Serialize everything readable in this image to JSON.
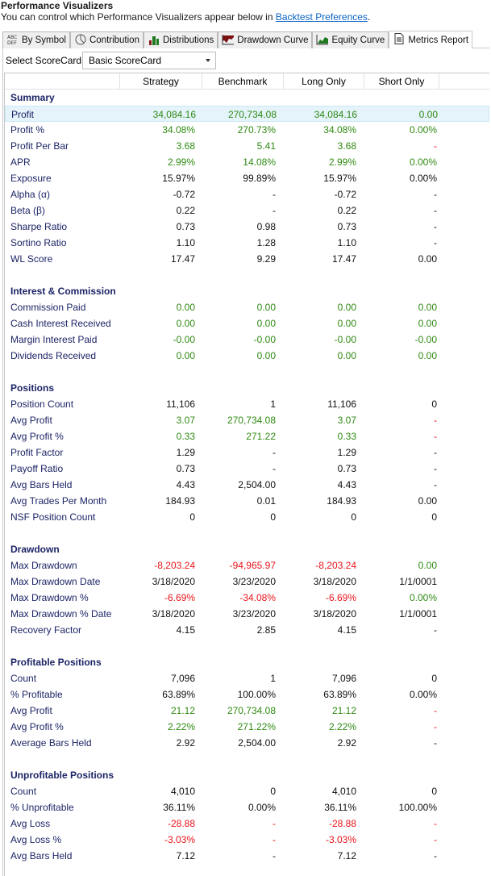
{
  "header": {
    "title": "Performance Visualizers",
    "subtitle": "You can control which Performance Visualizers appear below in ",
    "link": "Backtest Preferences",
    "period": "."
  },
  "tabs": [
    {
      "label": "By Symbol",
      "icon": "abc-def-icon"
    },
    {
      "label": "Contribution",
      "icon": "pie-chart-icon"
    },
    {
      "label": "Distributions",
      "icon": "bar-chart-icon"
    },
    {
      "label": "Drawdown Curve",
      "icon": "drawdown-chart-icon"
    },
    {
      "label": "Equity Curve",
      "icon": "equity-chart-icon"
    },
    {
      "label": "Metrics Report",
      "icon": "document-icon",
      "active": true
    }
  ],
  "scorecard": {
    "label": "Select ScoreCard:",
    "value": "Basic ScoreCard"
  },
  "columns": [
    "Strategy",
    "Benchmark",
    "Long Only",
    "Short Only"
  ],
  "colors": {
    "g": "#2f8a12",
    "r": "#e8141b",
    "k": "#111111"
  },
  "sections": [
    {
      "title": "Summary",
      "rows": [
        [
          "Profit",
          [
            [
              "34,084.16",
              "g"
            ],
            [
              "270,734.08",
              "g"
            ],
            [
              "34,084.16",
              "g"
            ],
            [
              "0.00",
              "g"
            ]
          ],
          true
        ],
        [
          "Profit %",
          [
            [
              "34.08%",
              "g"
            ],
            [
              "270.73%",
              "g"
            ],
            [
              "34.08%",
              "g"
            ],
            [
              "0.00%",
              "g"
            ]
          ]
        ],
        [
          "Profit Per Bar",
          [
            [
              "3.68",
              "g"
            ],
            [
              "5.41",
              "g"
            ],
            [
              "3.68",
              "g"
            ],
            [
              "-",
              "r"
            ]
          ]
        ],
        [
          "APR",
          [
            [
              "2.99%",
              "g"
            ],
            [
              "14.08%",
              "g"
            ],
            [
              "2.99%",
              "g"
            ],
            [
              "0.00%",
              "g"
            ]
          ]
        ],
        [
          "Exposure",
          [
            [
              "15.97%",
              "k"
            ],
            [
              "99.89%",
              "k"
            ],
            [
              "15.97%",
              "k"
            ],
            [
              "0.00%",
              "k"
            ]
          ]
        ],
        [
          "Alpha (α)",
          [
            [
              "-0.72",
              "k"
            ],
            [
              "-",
              "k"
            ],
            [
              "-0.72",
              "k"
            ],
            [
              "-",
              "k"
            ]
          ]
        ],
        [
          "Beta (β)",
          [
            [
              "0.22",
              "k"
            ],
            [
              "-",
              "k"
            ],
            [
              "0.22",
              "k"
            ],
            [
              "-",
              "k"
            ]
          ]
        ],
        [
          "Sharpe Ratio",
          [
            [
              "0.73",
              "k"
            ],
            [
              "0.98",
              "k"
            ],
            [
              "0.73",
              "k"
            ],
            [
              "-",
              "k"
            ]
          ]
        ],
        [
          "Sortino Ratio",
          [
            [
              "1.10",
              "k"
            ],
            [
              "1.28",
              "k"
            ],
            [
              "1.10",
              "k"
            ],
            [
              "-",
              "k"
            ]
          ]
        ],
        [
          "WL Score",
          [
            [
              "17.47",
              "k"
            ],
            [
              "9.29",
              "k"
            ],
            [
              "17.47",
              "k"
            ],
            [
              "0.00",
              "k"
            ]
          ]
        ]
      ]
    },
    {
      "title": "Interest & Commission",
      "rows": [
        [
          "Commission Paid",
          [
            [
              "0.00",
              "g"
            ],
            [
              "0.00",
              "g"
            ],
            [
              "0.00",
              "g"
            ],
            [
              "0.00",
              "g"
            ]
          ]
        ],
        [
          "Cash Interest Received",
          [
            [
              "0.00",
              "g"
            ],
            [
              "0.00",
              "g"
            ],
            [
              "0.00",
              "g"
            ],
            [
              "0.00",
              "g"
            ]
          ]
        ],
        [
          "Margin Interest Paid",
          [
            [
              "-0.00",
              "g"
            ],
            [
              "-0.00",
              "g"
            ],
            [
              "-0.00",
              "g"
            ],
            [
              "-0.00",
              "g"
            ]
          ]
        ],
        [
          "Dividends Received",
          [
            [
              "0.00",
              "g"
            ],
            [
              "0.00",
              "g"
            ],
            [
              "0.00",
              "g"
            ],
            [
              "0.00",
              "g"
            ]
          ]
        ]
      ]
    },
    {
      "title": "Positions",
      "rows": [
        [
          "Position Count",
          [
            [
              "11,106",
              "k"
            ],
            [
              "1",
              "k"
            ],
            [
              "11,106",
              "k"
            ],
            [
              "0",
              "k"
            ]
          ]
        ],
        [
          "Avg Profit",
          [
            [
              "3.07",
              "g"
            ],
            [
              "270,734.08",
              "g"
            ],
            [
              "3.07",
              "g"
            ],
            [
              "-",
              "r"
            ]
          ]
        ],
        [
          "Avg Profit %",
          [
            [
              "0.33",
              "g"
            ],
            [
              "271.22",
              "g"
            ],
            [
              "0.33",
              "g"
            ],
            [
              "-",
              "r"
            ]
          ]
        ],
        [
          "Profit Factor",
          [
            [
              "1.29",
              "k"
            ],
            [
              "-",
              "k"
            ],
            [
              "1.29",
              "k"
            ],
            [
              "-",
              "k"
            ]
          ]
        ],
        [
          "Payoff Ratio",
          [
            [
              "0.73",
              "k"
            ],
            [
              "-",
              "k"
            ],
            [
              "0.73",
              "k"
            ],
            [
              "-",
              "k"
            ]
          ]
        ],
        [
          "Avg Bars Held",
          [
            [
              "4.43",
              "k"
            ],
            [
              "2,504.00",
              "k"
            ],
            [
              "4.43",
              "k"
            ],
            [
              "-",
              "k"
            ]
          ]
        ],
        [
          "Avg Trades Per Month",
          [
            [
              "184.93",
              "k"
            ],
            [
              "0.01",
              "k"
            ],
            [
              "184.93",
              "k"
            ],
            [
              "0.00",
              "k"
            ]
          ]
        ],
        [
          "NSF Position Count",
          [
            [
              "0",
              "k"
            ],
            [
              "0",
              "k"
            ],
            [
              "0",
              "k"
            ],
            [
              "0",
              "k"
            ]
          ]
        ]
      ]
    },
    {
      "title": "Drawdown",
      "rows": [
        [
          "Max Drawdown",
          [
            [
              "-8,203.24",
              "r"
            ],
            [
              "-94,965.97",
              "r"
            ],
            [
              "-8,203.24",
              "r"
            ],
            [
              "0.00",
              "g"
            ]
          ]
        ],
        [
          "Max Drawdown Date",
          [
            [
              "3/18/2020",
              "k"
            ],
            [
              "3/23/2020",
              "k"
            ],
            [
              "3/18/2020",
              "k"
            ],
            [
              "1/1/0001",
              "k"
            ]
          ]
        ],
        [
          "Max Drawdown %",
          [
            [
              "-6.69%",
              "r"
            ],
            [
              "-34.08%",
              "r"
            ],
            [
              "-6.69%",
              "r"
            ],
            [
              "0.00%",
              "g"
            ]
          ]
        ],
        [
          "Max Drawdown % Date",
          [
            [
              "3/18/2020",
              "k"
            ],
            [
              "3/23/2020",
              "k"
            ],
            [
              "3/18/2020",
              "k"
            ],
            [
              "1/1/0001",
              "k"
            ]
          ]
        ],
        [
          "Recovery Factor",
          [
            [
              "4.15",
              "k"
            ],
            [
              "2.85",
              "k"
            ],
            [
              "4.15",
              "k"
            ],
            [
              "-",
              "k"
            ]
          ]
        ]
      ]
    },
    {
      "title": "Profitable Positions",
      "rows": [
        [
          "Count",
          [
            [
              "7,096",
              "k"
            ],
            [
              "1",
              "k"
            ],
            [
              "7,096",
              "k"
            ],
            [
              "0",
              "k"
            ]
          ]
        ],
        [
          "% Profitable",
          [
            [
              "63.89%",
              "k"
            ],
            [
              "100.00%",
              "k"
            ],
            [
              "63.89%",
              "k"
            ],
            [
              "0.00%",
              "k"
            ]
          ]
        ],
        [
          "Avg Profit",
          [
            [
              "21.12",
              "g"
            ],
            [
              "270,734.08",
              "g"
            ],
            [
              "21.12",
              "g"
            ],
            [
              "-",
              "r"
            ]
          ]
        ],
        [
          "Avg Profit %",
          [
            [
              "2.22%",
              "g"
            ],
            [
              "271.22%",
              "g"
            ],
            [
              "2.22%",
              "g"
            ],
            [
              "-",
              "r"
            ]
          ]
        ],
        [
          "Average Bars Held",
          [
            [
              "2.92",
              "k"
            ],
            [
              "2,504.00",
              "k"
            ],
            [
              "2.92",
              "k"
            ],
            [
              "-",
              "k"
            ]
          ]
        ]
      ]
    },
    {
      "title": "Unprofitable Positions",
      "rows": [
        [
          "Count",
          [
            [
              "4,010",
              "k"
            ],
            [
              "0",
              "k"
            ],
            [
              "4,010",
              "k"
            ],
            [
              "0",
              "k"
            ]
          ]
        ],
        [
          "% Unprofitable",
          [
            [
              "36.11%",
              "k"
            ],
            [
              "0.00%",
              "k"
            ],
            [
              "36.11%",
              "k"
            ],
            [
              "100.00%",
              "k"
            ]
          ]
        ],
        [
          "Avg Loss",
          [
            [
              "-28.88",
              "r"
            ],
            [
              "-",
              "r"
            ],
            [
              "-28.88",
              "r"
            ],
            [
              "-",
              "r"
            ]
          ]
        ],
        [
          "Avg Loss %",
          [
            [
              "-3.03%",
              "r"
            ],
            [
              "-",
              "r"
            ],
            [
              "-3.03%",
              "r"
            ],
            [
              "-",
              "r"
            ]
          ]
        ],
        [
          "Avg Bars Held",
          [
            [
              "7.12",
              "k"
            ],
            [
              "-",
              "k"
            ],
            [
              "7.12",
              "k"
            ],
            [
              "-",
              "k"
            ]
          ]
        ]
      ]
    }
  ]
}
